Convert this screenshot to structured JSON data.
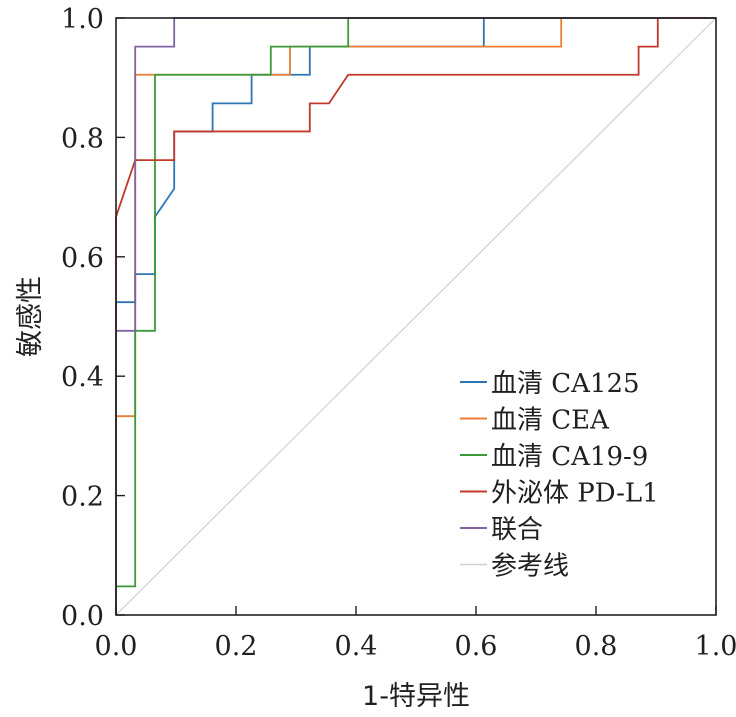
{
  "chart_data": {
    "type": "line",
    "xlabel": "1-特异性",
    "ylabel": "敏感性",
    "xlim": [
      0,
      1
    ],
    "ylim": [
      0,
      1
    ],
    "x_ticks": [
      "0.0",
      "0.2",
      "0.4",
      "0.6",
      "0.8",
      "1.0"
    ],
    "y_ticks": [
      "0.0",
      "0.2",
      "0.4",
      "0.6",
      "0.8",
      "1.0"
    ],
    "legend_position": "bottom-right",
    "series": [
      {
        "name": "血清CA125",
        "display_label": "血清 CA125",
        "color": "#2e75b6",
        "points": [
          [
            0,
            0
          ],
          [
            0,
            0.524
          ],
          [
            0.032,
            0.524
          ],
          [
            0.032,
            0.571
          ],
          [
            0.065,
            0.571
          ],
          [
            0.065,
            0.667
          ],
          [
            0.097,
            0.714
          ],
          [
            0.097,
            0.81
          ],
          [
            0.161,
            0.81
          ],
          [
            0.161,
            0.857
          ],
          [
            0.226,
            0.857
          ],
          [
            0.226,
            0.905
          ],
          [
            0.323,
            0.905
          ],
          [
            0.323,
            0.952
          ],
          [
            0.613,
            0.952
          ],
          [
            0.613,
            1.0
          ],
          [
            1.0,
            1.0
          ]
        ]
      },
      {
        "name": "血清CEA",
        "display_label": "血清 CEA",
        "color": "#ed7d31",
        "points": [
          [
            0,
            0
          ],
          [
            0,
            0.333
          ],
          [
            0.032,
            0.333
          ],
          [
            0.032,
            0.905
          ],
          [
            0.29,
            0.905
          ],
          [
            0.29,
            0.952
          ],
          [
            0.742,
            0.952
          ],
          [
            0.742,
            1.0
          ],
          [
            1.0,
            1.0
          ]
        ]
      },
      {
        "name": "血清CA19-9",
        "display_label": "血清 CA19-9",
        "color": "#3a9a3a",
        "points": [
          [
            0,
            0
          ],
          [
            0,
            0.048
          ],
          [
            0.032,
            0.048
          ],
          [
            0.032,
            0.476
          ],
          [
            0.065,
            0.476
          ],
          [
            0.065,
            0.905
          ],
          [
            0.258,
            0.905
          ],
          [
            0.258,
            0.952
          ],
          [
            0.387,
            0.952
          ],
          [
            0.387,
            1.0
          ],
          [
            1.0,
            1.0
          ]
        ]
      },
      {
        "name": "外泌体PD-L1",
        "display_label": "外泌体 PD-L1",
        "color": "#c0392b",
        "points": [
          [
            0,
            0
          ],
          [
            0,
            0.667
          ],
          [
            0.032,
            0.762
          ],
          [
            0.097,
            0.762
          ],
          [
            0.097,
            0.81
          ],
          [
            0.323,
            0.81
          ],
          [
            0.323,
            0.857
          ],
          [
            0.355,
            0.857
          ],
          [
            0.387,
            0.905
          ],
          [
            0.871,
            0.905
          ],
          [
            0.871,
            0.952
          ],
          [
            0.903,
            0.952
          ],
          [
            0.903,
            1.0
          ],
          [
            1.0,
            1.0
          ]
        ]
      },
      {
        "name": "联合",
        "display_label": "联合",
        "color": "#8064a2",
        "points": [
          [
            0,
            0
          ],
          [
            0,
            0.476
          ],
          [
            0.032,
            0.476
          ],
          [
            0.032,
            0.952
          ],
          [
            0.097,
            0.952
          ],
          [
            0.097,
            1.0
          ],
          [
            1.0,
            1.0
          ]
        ]
      },
      {
        "name": "参考线",
        "display_label": "参考线",
        "color": "#cfcfcf",
        "points": [
          [
            0,
            0
          ],
          [
            1,
            1
          ]
        ]
      }
    ]
  }
}
